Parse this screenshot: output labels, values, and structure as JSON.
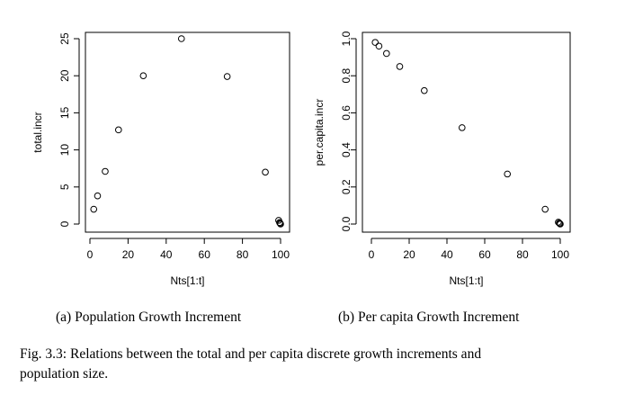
{
  "chart_data": [
    {
      "type": "scatter",
      "subcaption": "(a) Population Growth Increment",
      "xlabel": "Nts[1:t]",
      "ylabel": "total.incr",
      "xlim": [
        0,
        100
      ],
      "ylim": [
        0,
        25
      ],
      "xticks": [
        0,
        20,
        40,
        60,
        80,
        100
      ],
      "yticks": [
        0,
        5,
        10,
        15,
        20,
        25
      ],
      "x": [
        2,
        4,
        8,
        15,
        28,
        48,
        72,
        92,
        99,
        99.5,
        99.8,
        100
      ],
      "y": [
        2,
        3.8,
        7.1,
        12.7,
        20,
        25,
        19.9,
        7,
        0.5,
        0.2,
        0.1,
        0
      ]
    },
    {
      "type": "scatter",
      "subcaption": "(b) Per capita Growth Increment",
      "xlabel": "Nts[1:t]",
      "ylabel": "per.capita.incr",
      "xlim": [
        0,
        100
      ],
      "ylim": [
        0,
        1
      ],
      "xticks": [
        0,
        20,
        40,
        60,
        80,
        100
      ],
      "yticks": [
        0.0,
        0.2,
        0.4,
        0.6,
        0.8,
        1.0
      ],
      "ytick_labels": [
        "0.0",
        "0.2",
        "0.4",
        "0.6",
        "0.8",
        "1.0"
      ],
      "x": [
        2,
        4,
        8,
        15,
        28,
        48,
        72,
        92,
        99,
        99.5,
        99.8,
        100
      ],
      "y": [
        0.98,
        0.96,
        0.92,
        0.85,
        0.72,
        0.52,
        0.27,
        0.08,
        0.01,
        0.005,
        0.002,
        0
      ]
    }
  ],
  "caption": "Fig. 3.3: Relations between the total and per capita discrete growth increments and",
  "caption_line2": "population size."
}
